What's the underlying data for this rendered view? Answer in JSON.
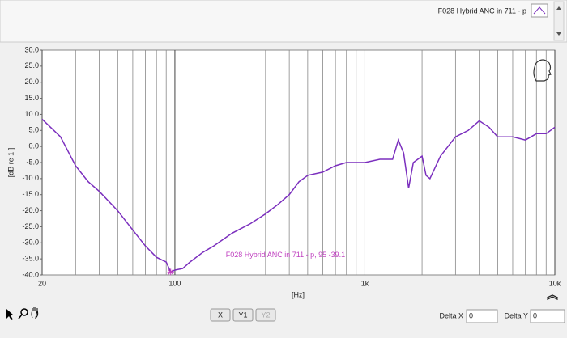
{
  "chart_data": {
    "type": "line",
    "legend_name": "F028 Hybrid ANC in 711 - p",
    "x_label": "[Hz]",
    "y_label": "[dB re 1 ]",
    "log_x": true,
    "xlim": [
      20,
      10000
    ],
    "xticks": [
      20,
      100,
      {
        "value": 1000,
        "label": "1k"
      },
      {
        "value": 10000,
        "label": "10k"
      }
    ],
    "xminorticks": [
      30,
      40,
      50,
      60,
      70,
      80,
      90,
      200,
      300,
      400,
      500,
      600,
      700,
      800,
      900,
      2000,
      3000,
      4000,
      5000,
      6000,
      7000,
      8000,
      9000
    ],
    "ylim": [
      -40,
      30
    ],
    "yticks": [
      {
        "value": 30,
        "label": "30.0"
      },
      {
        "value": 25,
        "label": "25.0"
      },
      {
        "value": 20,
        "label": "20.0"
      },
      {
        "value": 15,
        "label": "15.0"
      },
      {
        "value": 10,
        "label": "10.0"
      },
      {
        "value": 5,
        "label": "5.0"
      },
      {
        "value": 0,
        "label": "0.0"
      },
      {
        "value": -5,
        "label": "-5.0"
      },
      {
        "value": -10,
        "label": "-10.0"
      },
      {
        "value": -15,
        "label": "-15.0"
      },
      {
        "value": -20,
        "label": "-20.0"
      },
      {
        "value": -25,
        "label": "-25.0"
      },
      {
        "value": -30,
        "label": "-30.0"
      },
      {
        "value": -35,
        "label": "-35.0"
      },
      {
        "value": -40,
        "label": "-40.0"
      }
    ],
    "x": [
      20,
      25,
      30,
      35,
      40,
      50,
      60,
      70,
      80,
      90,
      95,
      100,
      110,
      120,
      140,
      160,
      200,
      250,
      300,
      350,
      400,
      450,
      500,
      600,
      700,
      800,
      1000,
      1200,
      1400,
      1500,
      1600,
      1700,
      1800,
      2000,
      2100,
      2200,
      2500,
      3000,
      3500,
      4000,
      4500,
      5000,
      6000,
      7000,
      8000,
      9000,
      10000
    ],
    "series": [
      {
        "name": "F028 Hybrid ANC in 711 - p",
        "color": "#7b2fbe",
        "values": [
          8.5,
          3,
          -6,
          -11,
          -14,
          -20,
          -26,
          -31,
          -34.5,
          -36,
          -39.1,
          -38.5,
          -38,
          -36,
          -33,
          -31,
          -27,
          -24,
          -21,
          -18,
          -15,
          -11,
          -9,
          -8,
          -6,
          -5,
          -5,
          -4,
          -4,
          2,
          -2,
          -13,
          -5,
          -3,
          -9,
          -10,
          -3,
          3,
          5,
          8,
          6,
          3,
          3,
          2,
          4,
          4,
          6
        ]
      }
    ],
    "cursor": {
      "label": "F028 Hybrid ANC in 711 - p,  95 -39.1",
      "x": 95,
      "y": -39.1,
      "color": "#c040c0"
    }
  },
  "toolbar": {
    "buttons": [
      "X",
      "Y1",
      "Y2"
    ],
    "delta_x_label": "Delta X",
    "delta_x": "0",
    "delta_y_label": "Delta Y",
    "delta_y": "0"
  }
}
